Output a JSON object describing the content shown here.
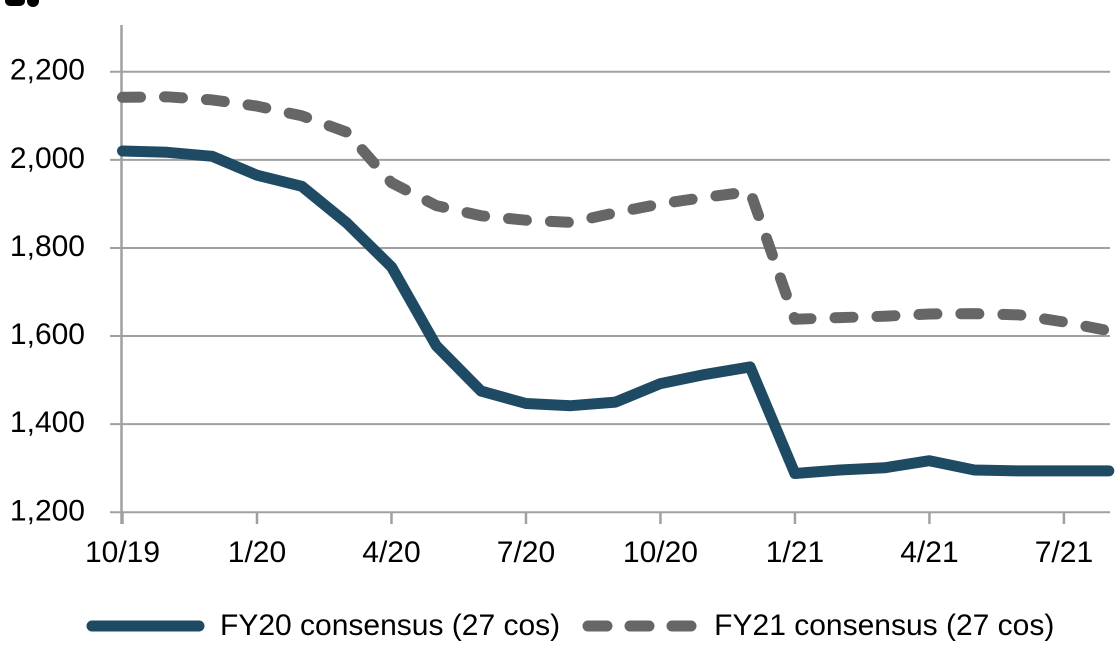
{
  "chart_data": {
    "type": "line",
    "x": [
      "10/19",
      "11/19",
      "12/19",
      "1/20",
      "2/20",
      "3/20",
      "4/20",
      "5/20",
      "6/20",
      "7/20",
      "8/20",
      "9/20",
      "10/20",
      "11/20",
      "12/20",
      "1/21",
      "2/21",
      "3/21",
      "4/21",
      "5/21",
      "6/21",
      "7/21",
      "8/21"
    ],
    "x_tick_indices": [
      0,
      3,
      6,
      9,
      12,
      15,
      18,
      21
    ],
    "x_tick_labels": [
      "10/19",
      "1/20",
      "4/20",
      "7/20",
      "10/20",
      "1/21",
      "4/21",
      "7/21"
    ],
    "y_axis": {
      "min": 1200,
      "max": 2200,
      "step": 200,
      "ticks": [
        1200,
        1400,
        1600,
        1800,
        2000,
        2200
      ],
      "tick_labels": [
        "1,200",
        "1,400",
        "1,600",
        "1,800",
        "2,000",
        "2,200"
      ]
    },
    "grid": "horizontal",
    "legend_position": "bottom",
    "series": [
      {
        "name": "FY20 consensus (27 cos)",
        "style": "solid",
        "color": "#1f4a63",
        "values": [
          2020,
          2017,
          2008,
          1965,
          1940,
          1857,
          1757,
          1578,
          1475,
          1447,
          1442,
          1450,
          1492,
          1513,
          1530,
          1288,
          1296,
          1301,
          1317,
          1296,
          1294,
          1294,
          1294
        ]
      },
      {
        "name": "FY21 consensus (27 cos)",
        "style": "dashed",
        "color": "#666666",
        "values": [
          2142,
          2143,
          2136,
          2122,
          2100,
          2063,
          1948,
          1896,
          1873,
          1863,
          1858,
          1880,
          1900,
          1915,
          1928,
          1638,
          1642,
          1645,
          1650,
          1651,
          1648,
          1632,
          1612
        ]
      }
    ]
  },
  "colors": {
    "grid": "#a0a0a0",
    "axis": "#a0a0a0",
    "text": "#000000",
    "fy20_line": "#1f4a63",
    "fy21_line": "#666666"
  }
}
